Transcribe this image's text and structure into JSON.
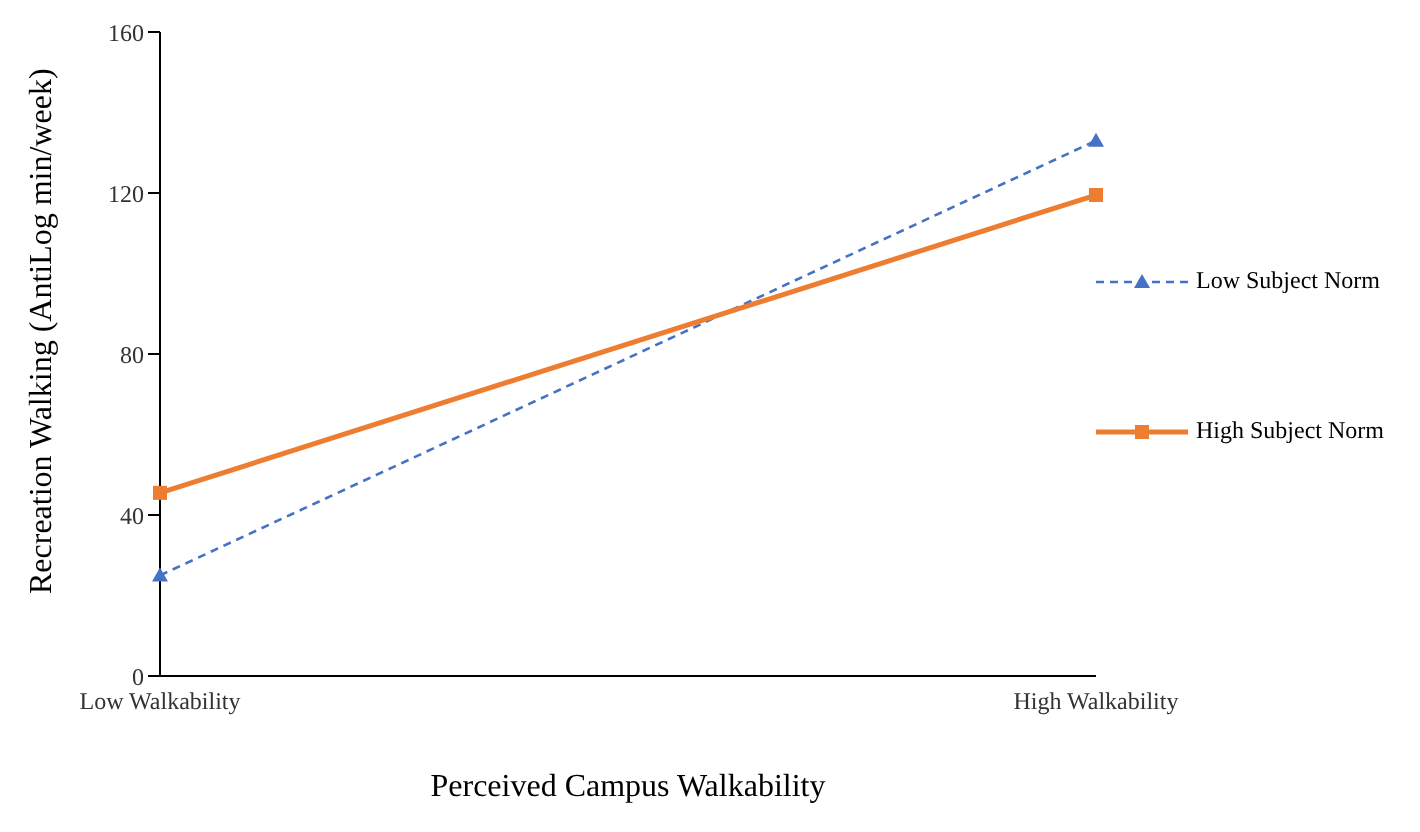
{
  "chart_data": {
    "type": "line",
    "xlabel": "Perceived Campus Walkability",
    "ylabel": "Recreation Walking (AntiLog min/week)",
    "categories": [
      "Low Walkability",
      "High Walkability"
    ],
    "series": [
      {
        "name": "Low Subject Norm",
        "color": "#4472c4",
        "values": [
          25,
          133
        ],
        "marker": "triangle",
        "line_style": "dashed"
      },
      {
        "name": "High Subject Norm",
        "color": "#ed7d31",
        "values": [
          45.5,
          119.5
        ],
        "marker": "square",
        "line_style": "solid"
      }
    ],
    "ylim": [
      0,
      160
    ],
    "yticks": [
      0,
      40,
      80,
      120,
      160
    ],
    "grid": false,
    "legend": "right"
  }
}
